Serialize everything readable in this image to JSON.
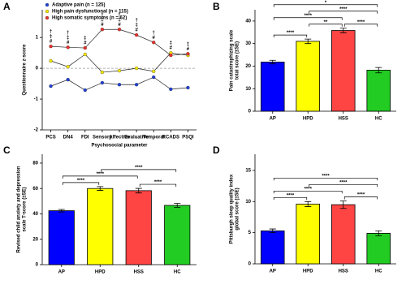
{
  "chart_data": [
    {
      "type": "line",
      "label": "A",
      "y_label": "Questionnaire z-score",
      "x_label": "Psychosocial parameter",
      "categories": [
        "PCS",
        "DN4",
        "FDI",
        "Sensory",
        "Affective",
        "Evaluative",
        "Temporal",
        "RCADS",
        "PSQI"
      ],
      "ylim": [
        -2,
        1.9
      ],
      "yticks": [
        -2,
        -1,
        0,
        1
      ],
      "hline": 0,
      "legend": "upper left",
      "series": [
        {
          "name": "Adaptive pain (n = 125)",
          "color": "#1f3fd6",
          "values": [
            -0.58,
            -0.37,
            -0.71,
            -0.47,
            -0.53,
            -0.53,
            -0.29,
            -0.68,
            -0.63
          ]
        },
        {
          "name": "High pain dysfunctional (n = 115)",
          "color": "#f2e600",
          "values": [
            0.24,
            0.05,
            0.45,
            -0.13,
            -0.08,
            0,
            -0.1,
            0.5,
            0.42
          ]
        },
        {
          "name": "High somatic symptoms (n = 62)",
          "color": "#e8302a",
          "values": [
            0.71,
            0.68,
            0.66,
            1.26,
            1.26,
            1.08,
            0.84,
            0.42,
            0.47
          ]
        }
      ],
      "annotations": [
        [
          "†",
          "‡",
          "#"
        ],
        [
          "†",
          "‡",
          "#"
        ],
        [
          "‡",
          "#"
        ],
        [
          "†",
          "‡",
          "#"
        ],
        [
          "†",
          "‡",
          "#"
        ],
        [
          "†",
          "‡",
          "#"
        ],
        [
          "†",
          "#"
        ],
        [
          "‡",
          "#"
        ],
        [
          "‡",
          "#"
        ]
      ]
    },
    {
      "type": "bar",
      "label": "B",
      "y_label": [
        "Pain catastrophizing scale",
        "total score (±SE)"
      ],
      "categories": [
        "AP",
        "HPD",
        "HSS",
        "HC"
      ],
      "values": [
        21.8,
        31,
        35.8,
        18.2
      ],
      "errors": [
        0.8,
        1.0,
        1.0,
        1.2
      ],
      "colors": [
        "#0000ff",
        "#ffff00",
        "#ff4444",
        "#22cc22"
      ],
      "ylim": [
        0,
        45
      ],
      "yticks": [
        0,
        10,
        20,
        30,
        40
      ],
      "comparisons": [
        {
          "pair": [
            "AP",
            "HPD"
          ],
          "label": "****"
        },
        {
          "pair": [
            "AP",
            "HSS"
          ],
          "label": "****"
        },
        {
          "pair": [
            "AP",
            "HC"
          ],
          "label": "*"
        },
        {
          "pair": [
            "HPD",
            "HSS"
          ],
          "label": "**"
        },
        {
          "pair": [
            "HPD",
            "HC"
          ],
          "label": "****"
        },
        {
          "pair": [
            "HSS",
            "HC"
          ],
          "label": "****"
        }
      ]
    },
    {
      "type": "bar",
      "label": "C",
      "y_label": [
        "Revised child anxiety and depression",
        "scale T-score (±SE)"
      ],
      "categories": [
        "AP",
        "HPD",
        "HSS",
        "HC"
      ],
      "values": [
        42.5,
        60,
        58.3,
        46.7
      ],
      "errors": [
        1.0,
        1.5,
        1.8,
        1.5
      ],
      "colors": [
        "#0000ff",
        "#ffff00",
        "#ff4444",
        "#22cc22"
      ],
      "ylim": [
        0,
        87
      ],
      "yticks": [
        0,
        20,
        40,
        60,
        80
      ],
      "comparisons": [
        {
          "pair": [
            "AP",
            "HPD"
          ],
          "label": "****"
        },
        {
          "pair": [
            "AP",
            "HSS"
          ],
          "label": "****"
        },
        {
          "pair": [
            "HPD",
            "HC"
          ],
          "label": "****"
        },
        {
          "pair": [
            "HSS",
            "HC"
          ],
          "label": "****"
        }
      ]
    },
    {
      "type": "bar",
      "label": "D",
      "y_label": [
        "Pittsburgh sleep quality index",
        "global score (±SE)"
      ],
      "categories": [
        "AP",
        "HPD",
        "HSS",
        "HC"
      ],
      "values": [
        5.3,
        9.6,
        9.5,
        4.9
      ],
      "errors": [
        0.3,
        0.4,
        0.6,
        0.4
      ],
      "colors": [
        "#0000ff",
        "#ffff00",
        "#ff4444",
        "#22cc22"
      ],
      "ylim": [
        0,
        17.6
      ],
      "yticks": [
        0,
        5,
        10,
        15
      ],
      "comparisons": [
        {
          "pair": [
            "AP",
            "HPD"
          ],
          "label": "****"
        },
        {
          "pair": [
            "AP",
            "HSS"
          ],
          "label": "****"
        },
        {
          "pair": [
            "AP",
            "HC"
          ],
          "label": "****"
        },
        {
          "pair": [
            "HPD",
            "HC"
          ],
          "label": "****"
        },
        {
          "pair": [
            "HSS",
            "HC"
          ],
          "label": "****"
        }
      ]
    }
  ]
}
